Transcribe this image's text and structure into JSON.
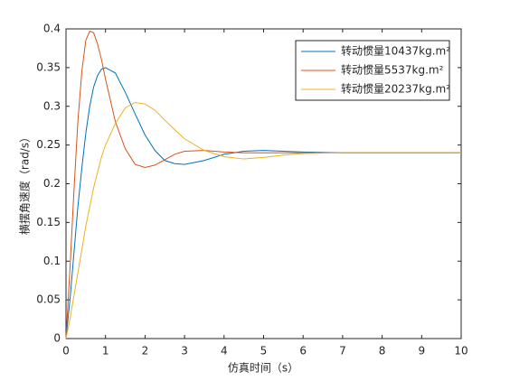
{
  "chart_data": {
    "type": "line",
    "x_label": "仿真时间（s）",
    "y_label": "横摆角速度（rad/s）",
    "x": [
      0,
      0.1,
      0.2,
      0.3,
      0.4,
      0.5,
      0.6,
      0.7,
      0.8,
      0.9,
      1,
      1.25,
      1.5,
      1.75,
      2,
      2.25,
      2.5,
      2.75,
      3,
      3.5,
      4,
      4.5,
      5,
      5.5,
      6,
      7,
      8,
      9,
      10
    ],
    "series": [
      {
        "name": "转动惯量10437kg.m²",
        "color": "#0072BD",
        "values": [
          0,
          0.05,
          0.11,
          0.17,
          0.22,
          0.265,
          0.3,
          0.325,
          0.34,
          0.348,
          0.35,
          0.343,
          0.318,
          0.29,
          0.263,
          0.243,
          0.23,
          0.226,
          0.225,
          0.23,
          0.238,
          0.242,
          0.243,
          0.242,
          0.241,
          0.24,
          0.24,
          0.24,
          0.24
        ]
      },
      {
        "name": "转动惯量5537kg.m²",
        "color": "#D95319",
        "values": [
          0,
          0.09,
          0.19,
          0.28,
          0.345,
          0.385,
          0.397,
          0.395,
          0.38,
          0.36,
          0.335,
          0.28,
          0.245,
          0.225,
          0.221,
          0.224,
          0.231,
          0.238,
          0.242,
          0.243,
          0.241,
          0.24,
          0.24,
          0.24,
          0.24,
          0.24,
          0.24,
          0.24,
          0.24
        ]
      },
      {
        "name": "转动惯量20237kg.m²",
        "color": "#EDB120",
        "values": [
          0,
          0.025,
          0.055,
          0.085,
          0.115,
          0.145,
          0.17,
          0.195,
          0.215,
          0.235,
          0.25,
          0.278,
          0.298,
          0.305,
          0.303,
          0.295,
          0.282,
          0.27,
          0.258,
          0.243,
          0.235,
          0.232,
          0.234,
          0.237,
          0.239,
          0.24,
          0.24,
          0.24,
          0.24
        ]
      }
    ],
    "xlim": [
      0,
      10
    ],
    "xticks": [
      0,
      1,
      2,
      3,
      4,
      5,
      6,
      7,
      8,
      9,
      10
    ],
    "ylim": [
      0,
      0.4
    ],
    "yticks": [
      0,
      0.05,
      0.1,
      0.15,
      0.2,
      0.25,
      0.3,
      0.35,
      0.4
    ],
    "legend": "upper-right"
  }
}
